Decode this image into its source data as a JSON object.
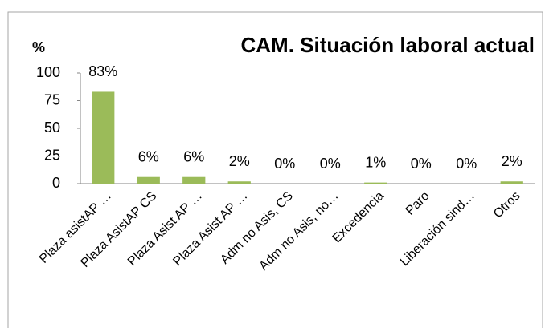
{
  "chart_data": {
    "type": "bar",
    "title": "CAM. Situación laboral actual",
    "y_label": "%",
    "categories": [
      "Plaza asistAP …",
      "Plaza AsistAP CS",
      "Plaza Asist AP …",
      "Plaza Asist AP …",
      "Adm no Asis, CS",
      "Adm no Asis, no…",
      "Excedencia",
      "Paro",
      "Liberación sind…",
      "Otros"
    ],
    "values": [
      83,
      6,
      6,
      2,
      0,
      0,
      1,
      0,
      0,
      2
    ],
    "value_labels": [
      "83%",
      "6%",
      "6%",
      "2%",
      "0%",
      "0%",
      "1%",
      "0%",
      "0%",
      "2%"
    ],
    "color": "#9bbb59",
    "ylim": [
      0,
      100
    ],
    "yticks": [
      0,
      25,
      50,
      75,
      100
    ],
    "grid": false
  }
}
